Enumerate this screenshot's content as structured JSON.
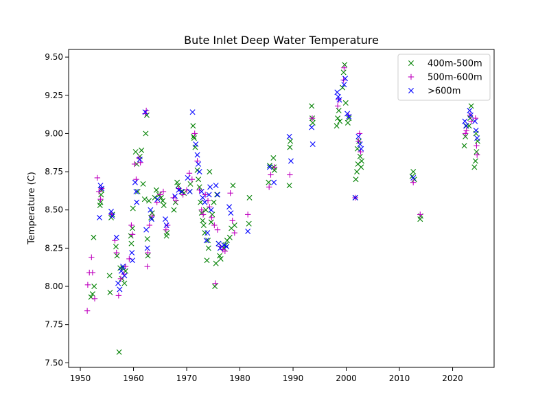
{
  "chart_data": {
    "type": "scatter",
    "title": "Bute Inlet Deep Water Temperature",
    "xlabel": "",
    "ylabel": "Temperature (C)",
    "xlim": [
      1947.8,
      2027.8
    ],
    "ylim": [
      7.47,
      9.55
    ],
    "xticks": [
      1950,
      1960,
      1970,
      1980,
      1990,
      2000,
      2010,
      2020
    ],
    "yticks": [
      7.5,
      7.75,
      8.0,
      8.25,
      8.5,
      8.75,
      9.0,
      9.25,
      9.5
    ],
    "grid": false,
    "legend_position": "top-right",
    "series": [
      {
        "name": "400m-500m",
        "marker": "x",
        "color": "#008000",
        "points": [
          [
            1952.0,
            7.93
          ],
          [
            1952.3,
            7.95
          ],
          [
            1952.5,
            8.32
          ],
          [
            1952.6,
            8.0
          ],
          [
            1953.8,
            8.55
          ],
          [
            1953.9,
            8.6
          ],
          [
            1954.0,
            8.63
          ],
          [
            1953.7,
            8.53
          ],
          [
            1955.5,
            8.07
          ],
          [
            1955.6,
            7.96
          ],
          [
            1955.8,
            8.45
          ],
          [
            1956.0,
            8.47
          ],
          [
            1956.7,
            8.26
          ],
          [
            1956.9,
            8.2
          ],
          [
            1957.3,
            7.57
          ],
          [
            1957.5,
            8.12
          ],
          [
            1957.8,
            8.05
          ],
          [
            1958.0,
            8.12
          ],
          [
            1958.3,
            8.02
          ],
          [
            1958.5,
            8.1
          ],
          [
            1959.5,
            8.33
          ],
          [
            1959.6,
            8.28
          ],
          [
            1959.8,
            8.38
          ],
          [
            1959.9,
            8.51
          ],
          [
            1960.4,
            8.88
          ],
          [
            1960.6,
            8.8
          ],
          [
            1960.8,
            8.62
          ],
          [
            1961.2,
            8.85
          ],
          [
            1961.5,
            8.89
          ],
          [
            1961.8,
            8.67
          ],
          [
            1962.1,
            8.57
          ],
          [
            1962.3,
            9.0
          ],
          [
            1962.5,
            9.12
          ],
          [
            1962.6,
            8.31
          ],
          [
            1962.7,
            8.2
          ],
          [
            1962.9,
            8.56
          ],
          [
            1963.3,
            8.45
          ],
          [
            1963.5,
            8.48
          ],
          [
            1964.0,
            8.58
          ],
          [
            1964.3,
            8.63
          ],
          [
            1964.8,
            8.6
          ],
          [
            1965.2,
            8.58
          ],
          [
            1965.5,
            8.56
          ],
          [
            1965.7,
            8.53
          ],
          [
            1966.2,
            8.33
          ],
          [
            1966.3,
            8.35
          ],
          [
            1967.6,
            8.5
          ],
          [
            1967.9,
            8.55
          ],
          [
            1968.2,
            8.68
          ],
          [
            1968.4,
            8.66
          ],
          [
            1969.2,
            8.62
          ],
          [
            1969.5,
            8.61
          ],
          [
            1970.6,
            8.62
          ],
          [
            1970.7,
            8.67
          ],
          [
            1971.2,
            9.05
          ],
          [
            1971.3,
            8.98
          ],
          [
            1971.4,
            8.97
          ],
          [
            1971.6,
            8.91
          ],
          [
            1972.0,
            8.76
          ],
          [
            1972.2,
            8.7
          ],
          [
            1972.4,
            8.65
          ],
          [
            1972.6,
            8.55
          ],
          [
            1972.8,
            8.48
          ],
          [
            1973.0,
            8.43
          ],
          [
            1973.2,
            8.4
          ],
          [
            1973.4,
            8.35
          ],
          [
            1973.6,
            8.5
          ],
          [
            1973.8,
            8.17
          ],
          [
            1974.0,
            8.3
          ],
          [
            1974.1,
            8.25
          ],
          [
            1974.3,
            8.75
          ],
          [
            1974.6,
            8.42
          ],
          [
            1974.8,
            8.47
          ],
          [
            1975.1,
            8.55
          ],
          [
            1975.3,
            8.0
          ],
          [
            1975.5,
            8.15
          ],
          [
            1975.7,
            8.6
          ],
          [
            1976.0,
            8.28
          ],
          [
            1976.2,
            8.2
          ],
          [
            1976.4,
            8.18
          ],
          [
            1977.0,
            8.25
          ],
          [
            1977.3,
            8.27
          ],
          [
            1977.6,
            8.3
          ],
          [
            1978.1,
            8.32
          ],
          [
            1978.4,
            8.38
          ],
          [
            1978.7,
            8.66
          ],
          [
            1979.0,
            8.4
          ],
          [
            1981.7,
            8.41
          ],
          [
            1981.8,
            8.58
          ],
          [
            1985.4,
            8.68
          ],
          [
            1985.6,
            8.79
          ],
          [
            1986.3,
            8.84
          ],
          [
            1986.4,
            8.78
          ],
          [
            1986.5,
            8.76
          ],
          [
            1989.3,
            8.66
          ],
          [
            1989.4,
            8.91
          ],
          [
            1989.5,
            8.95
          ],
          [
            1993.5,
            9.18
          ],
          [
            1993.6,
            9.1
          ],
          [
            1993.7,
            9.07
          ],
          [
            1998.2,
            9.05
          ],
          [
            1998.4,
            9.1
          ],
          [
            1998.6,
            9.15
          ],
          [
            1998.8,
            9.08
          ],
          [
            1999.3,
            9.3
          ],
          [
            1999.5,
            9.4
          ],
          [
            1999.7,
            9.45
          ],
          [
            1999.9,
            9.2
          ],
          [
            2000.3,
            9.07
          ],
          [
            2000.5,
            9.1
          ],
          [
            2001.7,
            8.58
          ],
          [
            2001.8,
            8.7
          ],
          [
            2002.0,
            8.75
          ],
          [
            2002.2,
            8.8
          ],
          [
            2002.1,
            8.9
          ],
          [
            2002.4,
            8.95
          ],
          [
            2002.6,
            8.85
          ],
          [
            2002.8,
            8.78
          ],
          [
            2002.9,
            8.82
          ],
          [
            2012.4,
            8.72
          ],
          [
            2012.6,
            8.75
          ],
          [
            2012.8,
            8.7
          ],
          [
            2013.9,
            8.44
          ],
          [
            2014.0,
            8.46
          ],
          [
            2022.2,
            8.92
          ],
          [
            2022.4,
            8.98
          ],
          [
            2022.6,
            9.05
          ],
          [
            2023.1,
            9.05
          ],
          [
            2023.3,
            9.1
          ],
          [
            2023.5,
            9.18
          ],
          [
            2024.1,
            8.78
          ],
          [
            2024.3,
            8.82
          ],
          [
            2024.5,
            8.88
          ],
          [
            2024.7,
            8.95
          ],
          [
            2024.4,
            9.0
          ]
        ]
      },
      {
        "name": "500m-600m",
        "marker": "+",
        "color": "#bf00bf",
        "points": [
          [
            1951.3,
            7.84
          ],
          [
            1951.4,
            8.01
          ],
          [
            1951.7,
            8.09
          ],
          [
            1952.1,
            8.19
          ],
          [
            1952.3,
            8.09
          ],
          [
            1952.7,
            7.92
          ],
          [
            1953.2,
            8.71
          ],
          [
            1953.5,
            8.62
          ],
          [
            1953.8,
            8.57
          ],
          [
            1954.0,
            8.64
          ],
          [
            1955.9,
            8.47
          ],
          [
            1956.5,
            8.3
          ],
          [
            1956.8,
            8.22
          ],
          [
            1957.2,
            7.94
          ],
          [
            1957.6,
            8.05
          ],
          [
            1958.2,
            8.08
          ],
          [
            1958.5,
            8.13
          ],
          [
            1959.2,
            8.18
          ],
          [
            1959.6,
            8.4
          ],
          [
            1959.8,
            8.34
          ],
          [
            1960.2,
            8.8
          ],
          [
            1960.5,
            8.7
          ],
          [
            1961.0,
            8.84
          ],
          [
            1961.3,
            8.81
          ],
          [
            1962.2,
            9.13
          ],
          [
            1962.4,
            9.15
          ],
          [
            1962.6,
            8.13
          ],
          [
            1962.7,
            8.22
          ],
          [
            1963.0,
            8.4
          ],
          [
            1963.5,
            8.46
          ],
          [
            1964.4,
            8.55
          ],
          [
            1965.0,
            8.6
          ],
          [
            1965.6,
            8.62
          ],
          [
            1966.1,
            8.37
          ],
          [
            1966.4,
            8.4
          ],
          [
            1967.5,
            8.58
          ],
          [
            1968.0,
            8.56
          ],
          [
            1968.5,
            8.64
          ],
          [
            1969.3,
            8.6
          ],
          [
            1970.0,
            8.63
          ],
          [
            1970.5,
            8.74
          ],
          [
            1971.0,
            8.7
          ],
          [
            1971.5,
            9.0
          ],
          [
            1972.0,
            8.82
          ],
          [
            1972.4,
            8.63
          ],
          [
            1972.8,
            8.5
          ],
          [
            1973.1,
            8.47
          ],
          [
            1973.5,
            8.6
          ],
          [
            1974.0,
            8.56
          ],
          [
            1974.3,
            8.52
          ],
          [
            1974.7,
            8.45
          ],
          [
            1975.2,
            8.4
          ],
          [
            1975.4,
            8.02
          ],
          [
            1975.8,
            8.37
          ],
          [
            1976.3,
            8.26
          ],
          [
            1976.8,
            8.24
          ],
          [
            1977.2,
            8.23
          ],
          [
            1978.2,
            8.61
          ],
          [
            1978.6,
            8.43
          ],
          [
            1979.0,
            8.35
          ],
          [
            1981.5,
            8.47
          ],
          [
            1985.5,
            8.65
          ],
          [
            1985.8,
            8.73
          ],
          [
            1986.5,
            8.78
          ],
          [
            1989.4,
            8.73
          ],
          [
            1993.6,
            9.1
          ],
          [
            1998.4,
            9.18
          ],
          [
            1998.6,
            9.22
          ],
          [
            1999.5,
            9.35
          ],
          [
            1999.6,
            9.43
          ],
          [
            2000.4,
            9.12
          ],
          [
            2001.7,
            8.58
          ],
          [
            2002.3,
            8.95
          ],
          [
            2002.5,
            9.0
          ],
          [
            2002.7,
            8.88
          ],
          [
            2012.6,
            8.68
          ],
          [
            2013.9,
            8.47
          ],
          [
            2022.4,
            9.0
          ],
          [
            2022.6,
            9.02
          ],
          [
            2023.3,
            9.12
          ],
          [
            2023.5,
            9.08
          ],
          [
            2024.3,
            9.1
          ],
          [
            2024.5,
            8.92
          ],
          [
            2024.6,
            8.86
          ]
        ]
      },
      {
        "name": ">600m",
        "marker": "x",
        "color": "#0000ff",
        "points": [
          [
            1953.6,
            8.45
          ],
          [
            1953.8,
            8.66
          ],
          [
            1954.0,
            8.64
          ],
          [
            1955.8,
            8.49
          ],
          [
            1956.0,
            8.46
          ],
          [
            1956.8,
            8.32
          ],
          [
            1957.1,
            8.02
          ],
          [
            1957.4,
            7.98
          ],
          [
            1957.7,
            8.1
          ],
          [
            1958.0,
            8.13
          ],
          [
            1958.3,
            8.07
          ],
          [
            1959.7,
            8.22
          ],
          [
            1959.8,
            8.17
          ],
          [
            1960.3,
            8.68
          ],
          [
            1960.5,
            8.62
          ],
          [
            1960.6,
            8.55
          ],
          [
            1961.2,
            8.83
          ],
          [
            1962.2,
            9.14
          ],
          [
            1962.4,
            8.37
          ],
          [
            1962.6,
            8.25
          ],
          [
            1963.2,
            8.5
          ],
          [
            1963.4,
            8.44
          ],
          [
            1964.5,
            8.57
          ],
          [
            1966.0,
            8.44
          ],
          [
            1966.2,
            8.4
          ],
          [
            1967.8,
            8.59
          ],
          [
            1968.5,
            8.63
          ],
          [
            1969.0,
            8.62
          ],
          [
            1970.2,
            8.71
          ],
          [
            1970.6,
            8.62
          ],
          [
            1971.1,
            9.14
          ],
          [
            1971.7,
            8.93
          ],
          [
            1972.0,
            8.86
          ],
          [
            1972.2,
            8.8
          ],
          [
            1972.4,
            8.75
          ],
          [
            1972.8,
            8.62
          ],
          [
            1973.0,
            8.58
          ],
          [
            1973.4,
            8.55
          ],
          [
            1973.7,
            8.3
          ],
          [
            1973.9,
            8.35
          ],
          [
            1974.2,
            8.6
          ],
          [
            1974.4,
            8.65
          ],
          [
            1974.6,
            8.5
          ],
          [
            1975.5,
            8.66
          ],
          [
            1975.8,
            8.6
          ],
          [
            1976.0,
            8.28
          ],
          [
            1976.3,
            8.25
          ],
          [
            1977.0,
            8.27
          ],
          [
            1977.5,
            8.26
          ],
          [
            1978.0,
            8.52
          ],
          [
            1978.3,
            8.48
          ],
          [
            1981.5,
            8.36
          ],
          [
            1985.6,
            8.78
          ],
          [
            1986.4,
            8.68
          ],
          [
            1989.3,
            8.98
          ],
          [
            1989.6,
            8.82
          ],
          [
            1993.5,
            9.04
          ],
          [
            1993.7,
            8.93
          ],
          [
            1998.3,
            9.27
          ],
          [
            1998.5,
            9.24
          ],
          [
            1998.7,
            9.22
          ],
          [
            1999.6,
            9.32
          ],
          [
            1999.8,
            9.36
          ],
          [
            2000.2,
            9.13
          ],
          [
            2000.5,
            9.11
          ],
          [
            2001.7,
            8.58
          ],
          [
            2002.3,
            8.98
          ],
          [
            2002.6,
            8.93
          ],
          [
            2002.8,
            8.9
          ],
          [
            2012.6,
            8.71
          ],
          [
            2022.3,
            9.08
          ],
          [
            2022.5,
            9.05
          ],
          [
            2023.2,
            9.15
          ],
          [
            2023.4,
            9.12
          ],
          [
            2024.2,
            9.08
          ],
          [
            2024.4,
            9.02
          ],
          [
            2024.6,
            8.97
          ]
        ]
      }
    ]
  }
}
